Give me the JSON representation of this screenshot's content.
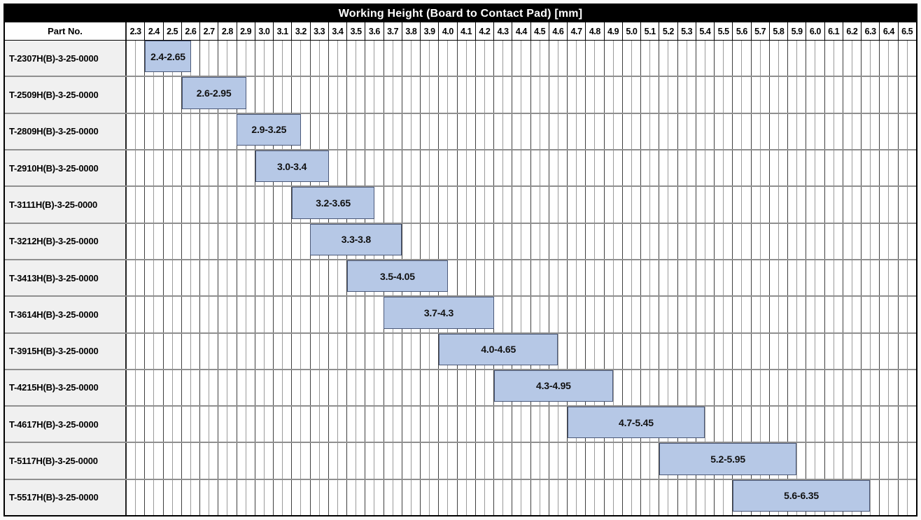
{
  "header": {
    "title": "Working Height (Board to Contact Pad) [mm]",
    "part_column_label": "Part No."
  },
  "colors": {
    "header_bg": "#000000",
    "header_text": "#ffffff",
    "bar_fill": "#b6c8e6",
    "bar_border": "#4a5878",
    "part_cell_bg": "#f0f0f0",
    "grid_major_line": "#3f3f3f",
    "grid_minor_line": "#9a9a9a",
    "row_divider": "#8f8f8f"
  },
  "chart_data": {
    "type": "bar",
    "orientation": "horizontal-range",
    "title": "Working Height (Board to Contact Pad) [mm]",
    "xlim": [
      2.3,
      6.6
    ],
    "x_tick_labels": [
      "2.3",
      "2.4",
      "2.5",
      "2.6",
      "2.7",
      "2.8",
      "2.9",
      "3.0",
      "3.1",
      "3.2",
      "3.3",
      "3.4",
      "3.5",
      "3.6",
      "3.7",
      "3.8",
      "3.9",
      "4.0",
      "4.1",
      "4.2",
      "4.3",
      "4.4",
      "4.5",
      "4.6",
      "4.7",
      "4.8",
      "4.9",
      "5.0",
      "5.1",
      "5.2",
      "5.3",
      "5.4",
      "5.5",
      "5.6",
      "5.7",
      "5.8",
      "5.9",
      "6.0",
      "6.1",
      "6.2",
      "6.3",
      "6.4",
      "6.5"
    ],
    "x_major_step": 0.1,
    "x_minor_step": 0.05,
    "grid": true,
    "categories": [
      "T-2307H(B)-3-25-0000",
      "T-2509H(B)-3-25-0000",
      "T-2809H(B)-3-25-0000",
      "T-2910H(B)-3-25-0000",
      "T-3111H(B)-3-25-0000",
      "T-3212H(B)-3-25-0000",
      "T-3413H(B)-3-25-0000",
      "T-3614H(B)-3-25-0000",
      "T-3915H(B)-3-25-0000",
      "T-4215H(B)-3-25-0000",
      "T-4617H(B)-3-25-0000",
      "T-5117H(B)-3-25-0000",
      "T-5517H(B)-3-25-0000"
    ],
    "ranges": [
      [
        2.4,
        2.65
      ],
      [
        2.6,
        2.95
      ],
      [
        2.9,
        3.25
      ],
      [
        3.0,
        3.4
      ],
      [
        3.2,
        3.65
      ],
      [
        3.3,
        3.8
      ],
      [
        3.5,
        4.05
      ],
      [
        3.7,
        4.3
      ],
      [
        4.0,
        4.65
      ],
      [
        4.3,
        4.95
      ],
      [
        4.7,
        5.45
      ],
      [
        5.2,
        5.95
      ],
      [
        5.6,
        6.35
      ]
    ],
    "range_labels": [
      "2.4-2.65",
      "2.6-2.95",
      "2.9-3.25",
      "3.0-3.4",
      "3.2-3.65",
      "3.3-3.8",
      "3.5-4.05",
      "3.7-4.3",
      "4.0-4.65",
      "4.3-4.95",
      "4.7-5.45",
      "5.2-5.95",
      "5.6-6.35"
    ]
  }
}
